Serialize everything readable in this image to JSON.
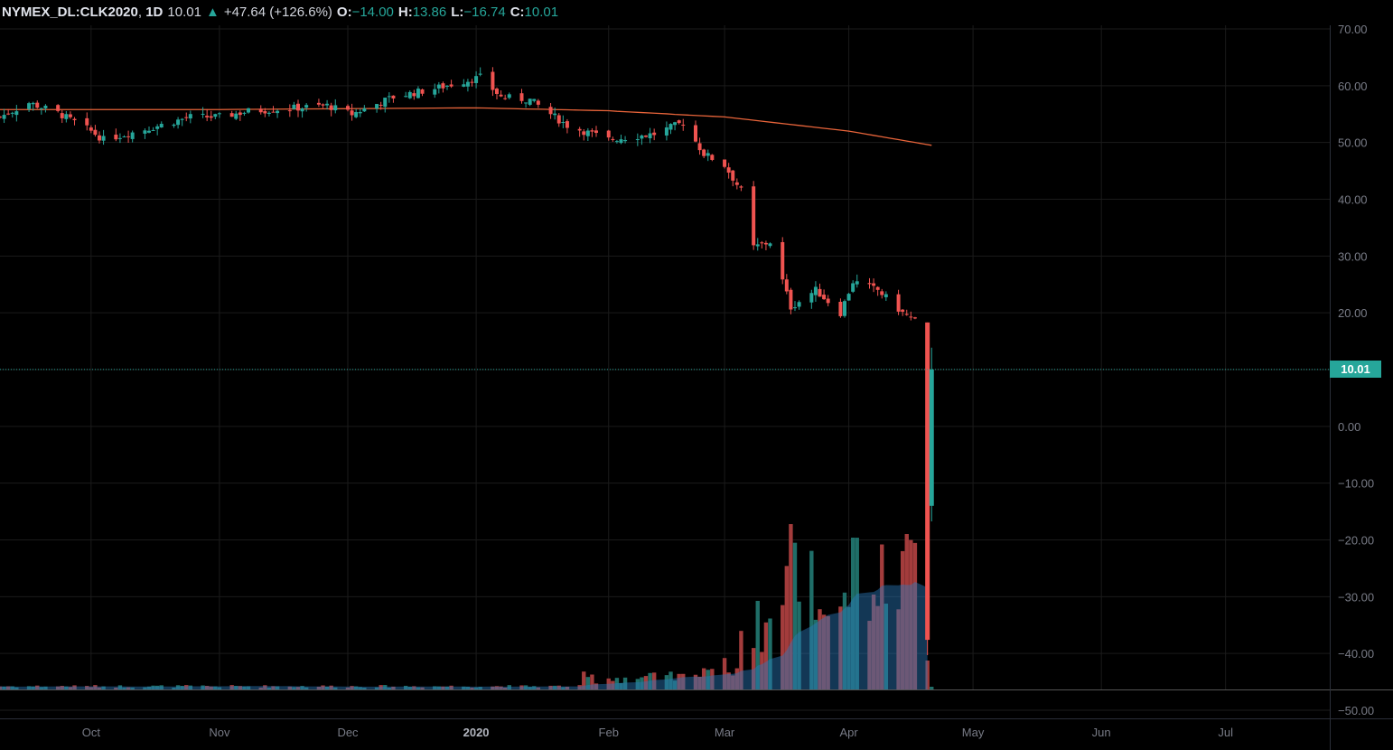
{
  "header": {
    "symbol": "NYMEX_DL:CLK2020",
    "interval": "1D",
    "last": "10.01",
    "change_arrow": "▲",
    "change": "+47.64 (+126.6%)",
    "o_label": "O:",
    "o_value": "−14.00",
    "h_label": "H:",
    "h_value": "13.86",
    "l_label": "L:",
    "l_value": "−16.74",
    "c_label": "C:",
    "c_value": "10.01"
  },
  "price_tag": "10.01",
  "colors": {
    "up": "#26a69a",
    "down": "#ef5350",
    "vol_up": "#1f6e68",
    "vol_down": "#a33c3c",
    "ma": "#e8643a",
    "grid": "#1b1b1b",
    "text": "#787b86"
  },
  "chart_data": {
    "type": "candlestick",
    "title": "NYMEX_DL:CLK2020, 1D",
    "y_axis": {
      "range": [
        -50,
        70
      ],
      "ticks": [
        "70.00",
        "60.00",
        "50.00",
        "40.00",
        "30.00",
        "20.00",
        "10.00",
        "0.00",
        "−10.00",
        "−20.00",
        "−30.00",
        "−40.00",
        "−50.00"
      ],
      "tick_values": [
        70,
        60,
        50,
        40,
        30,
        20,
        10,
        0,
        -10,
        -20,
        -30,
        -40,
        -50
      ]
    },
    "x_axis": {
      "range": [
        "2019-09-09",
        "2020-07-17"
      ],
      "ticks": [
        {
          "label": "Oct",
          "date": "2019-10-01"
        },
        {
          "label": "Nov",
          "date": "2019-11-01"
        },
        {
          "label": "Dec",
          "date": "2019-12-02"
        },
        {
          "label": "2020",
          "date": "2020-01-02"
        },
        {
          "label": "Feb",
          "date": "2020-02-03"
        },
        {
          "label": "Mar",
          "date": "2020-03-02"
        },
        {
          "label": "Apr",
          "date": "2020-04-01"
        },
        {
          "label": "May",
          "date": "2020-05-01"
        },
        {
          "label": "Jun",
          "date": "2020-06-01"
        },
        {
          "label": "Jul",
          "date": "2020-07-01"
        }
      ]
    },
    "last_price": 10.01,
    "close_series": [
      {
        "date": "2019-09-09",
        "close": 54.5
      },
      {
        "date": "2019-09-16",
        "close": 57.0
      },
      {
        "date": "2019-09-23",
        "close": 55.2
      },
      {
        "date": "2019-10-01",
        "close": 52.0
      },
      {
        "date": "2019-10-04",
        "close": 50.5
      },
      {
        "date": "2019-10-15",
        "close": 52.5
      },
      {
        "date": "2019-10-25",
        "close": 54.5
      },
      {
        "date": "2019-11-01",
        "close": 54.5
      },
      {
        "date": "2019-11-08",
        "close": 55.5
      },
      {
        "date": "2019-11-18",
        "close": 56.0
      },
      {
        "date": "2019-11-27",
        "close": 56.5
      },
      {
        "date": "2019-12-03",
        "close": 55.0
      },
      {
        "date": "2019-12-13",
        "close": 58.0
      },
      {
        "date": "2019-12-23",
        "close": 59.5
      },
      {
        "date": "2020-01-03",
        "close": 61.5
      },
      {
        "date": "2020-01-08",
        "close": 58.0
      },
      {
        "date": "2020-01-15",
        "close": 57.5
      },
      {
        "date": "2020-01-24",
        "close": 53.0
      },
      {
        "date": "2020-02-03",
        "close": 50.5
      },
      {
        "date": "2020-02-14",
        "close": 51.5
      },
      {
        "date": "2020-02-21",
        "close": 53.5
      },
      {
        "date": "2020-02-26",
        "close": 48.0
      },
      {
        "date": "2020-03-02",
        "close": 46.0
      },
      {
        "date": "2020-03-06",
        "close": 41.5
      },
      {
        "date": "2020-03-09",
        "close": 31.5
      },
      {
        "date": "2020-03-13",
        "close": 32.5
      },
      {
        "date": "2020-03-18",
        "close": 21.0
      },
      {
        "date": "2020-03-24",
        "close": 24.0
      },
      {
        "date": "2020-03-30",
        "close": 20.0
      },
      {
        "date": "2020-04-02",
        "close": 25.5
      },
      {
        "date": "2020-04-08",
        "close": 24.0
      },
      {
        "date": "2020-04-14",
        "close": 20.0
      },
      {
        "date": "2020-04-17",
        "close": 18.5
      },
      {
        "date": "2020-04-20",
        "close": -37.6
      },
      {
        "date": "2020-04-21",
        "close": 10.01
      }
    ],
    "moving_average": [
      {
        "date": "2019-09-09",
        "value": 55.8
      },
      {
        "date": "2019-11-01",
        "value": 55.8
      },
      {
        "date": "2020-01-02",
        "value": 56.1
      },
      {
        "date": "2020-02-03",
        "value": 55.6
      },
      {
        "date": "2020-03-02",
        "value": 54.5
      },
      {
        "date": "2020-04-01",
        "value": 52.0
      },
      {
        "date": "2020-04-21",
        "value": 49.5
      }
    ],
    "volume_profile": "low and flat through Jan 2020, rising Feb, peaks mid-Mar and mid-Apr 2020"
  }
}
